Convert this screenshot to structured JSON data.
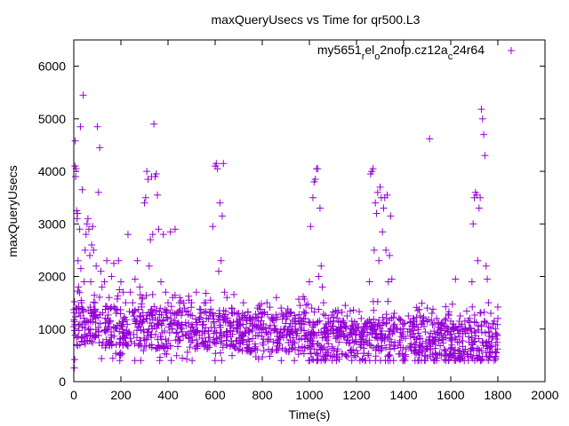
{
  "chart_data": {
    "type": "scatter",
    "title": "maxQueryUsecs vs Time for qr500.L3",
    "xlabel": "Time(s)",
    "ylabel": "maxQueryUsecs",
    "xlim": [
      0,
      2000
    ],
    "ylim": [
      0,
      6500
    ],
    "xticks": [
      0,
      200,
      400,
      600,
      800,
      1000,
      1200,
      1400,
      1600,
      1800,
      2000
    ],
    "yticks": [
      0,
      1000,
      2000,
      3000,
      4000,
      5000,
      6000
    ],
    "grid": false,
    "legend_position": "top-right",
    "marker_color": "#9400d3",
    "series": [
      {
        "name_parts": [
          {
            "t": "my5651",
            "sub": false
          },
          {
            "t": "r",
            "sub": true
          },
          {
            "t": "el",
            "sub": false
          },
          {
            "t": "o",
            "sub": true
          },
          {
            "t": "2nofp.cz12a",
            "sub": false
          },
          {
            "t": "c",
            "sub": true
          },
          {
            "t": "24r64",
            "sub": false
          }
        ],
        "points": [
          [
            2,
            260
          ],
          [
            4,
            420
          ],
          [
            5,
            4100
          ],
          [
            6,
            4580
          ],
          [
            8,
            3900
          ],
          [
            9,
            1400
          ],
          [
            10,
            4050
          ],
          [
            12,
            3250
          ],
          [
            14,
            3100
          ],
          [
            16,
            3200
          ],
          [
            18,
            2300
          ],
          [
            20,
            1800
          ],
          [
            22,
            1300
          ],
          [
            25,
            2900
          ],
          [
            28,
            4850
          ],
          [
            30,
            2150
          ],
          [
            33,
            1500
          ],
          [
            36,
            3650
          ],
          [
            40,
            5450
          ],
          [
            44,
            1900
          ],
          [
            48,
            2500
          ],
          [
            52,
            2800
          ],
          [
            56,
            3000
          ],
          [
            60,
            3100
          ],
          [
            64,
            2900
          ],
          [
            68,
            2400
          ],
          [
            72,
            1900
          ],
          [
            76,
            2600
          ],
          [
            80,
            2950
          ],
          [
            84,
            2500
          ],
          [
            90,
            1500
          ],
          [
            95,
            2200
          ],
          [
            100,
            4850
          ],
          [
            105,
            3600
          ],
          [
            110,
            4450
          ],
          [
            115,
            2100
          ],
          [
            120,
            1800
          ],
          [
            130,
            1900
          ],
          [
            140,
            2300
          ],
          [
            150,
            1600
          ],
          [
            160,
            2000
          ],
          [
            170,
            2250
          ],
          [
            180,
            1300
          ],
          [
            190,
            2300
          ],
          [
            200,
            1900
          ],
          [
            210,
            1700
          ],
          [
            220,
            1500
          ],
          [
            230,
            2800
          ],
          [
            240,
            1700
          ],
          [
            250,
            1500
          ],
          [
            260,
            1950
          ],
          [
            270,
            2300
          ],
          [
            280,
            1800
          ],
          [
            290,
            1600
          ],
          [
            300,
            3400
          ],
          [
            305,
            3500
          ],
          [
            310,
            4000
          ],
          [
            315,
            3850
          ],
          [
            320,
            2200
          ],
          [
            325,
            2700
          ],
          [
            330,
            3900
          ],
          [
            335,
            2800
          ],
          [
            340,
            4900
          ],
          [
            345,
            3900
          ],
          [
            350,
            3950
          ],
          [
            355,
            3550
          ],
          [
            360,
            2900
          ],
          [
            370,
            1900
          ],
          [
            380,
            2800
          ],
          [
            390,
            1700
          ],
          [
            400,
            1500
          ],
          [
            410,
            2850
          ],
          [
            420,
            1600
          ],
          [
            430,
            2900
          ],
          [
            450,
            1600
          ],
          [
            470,
            1400
          ],
          [
            500,
            1500
          ],
          [
            520,
            1700
          ],
          [
            540,
            1300
          ],
          [
            560,
            1500
          ],
          [
            580,
            1550
          ],
          [
            590,
            2950
          ],
          [
            600,
            4100
          ],
          [
            605,
            4150
          ],
          [
            610,
            4050
          ],
          [
            615,
            2100
          ],
          [
            620,
            3400
          ],
          [
            625,
            2300
          ],
          [
            630,
            3150
          ],
          [
            635,
            4150
          ],
          [
            640,
            1700
          ],
          [
            650,
            1600
          ],
          [
            670,
            1400
          ],
          [
            700,
            1300
          ],
          [
            720,
            1500
          ],
          [
            750,
            1200
          ],
          [
            780,
            1400
          ],
          [
            800,
            1300
          ],
          [
            820,
            1500
          ],
          [
            840,
            1200
          ],
          [
            860,
            1600
          ],
          [
            880,
            1400
          ],
          [
            900,
            1300
          ],
          [
            920,
            1300
          ],
          [
            940,
            1200
          ],
          [
            960,
            1450
          ],
          [
            980,
            1300
          ],
          [
            1000,
            1900
          ],
          [
            1005,
            2950
          ],
          [
            1010,
            1400
          ],
          [
            1015,
            3500
          ],
          [
            1020,
            3800
          ],
          [
            1025,
            3850
          ],
          [
            1030,
            4050
          ],
          [
            1035,
            4050
          ],
          [
            1040,
            2000
          ],
          [
            1045,
            3300
          ],
          [
            1050,
            2200
          ],
          [
            1055,
            1800
          ],
          [
            1060,
            1500
          ],
          [
            1080,
            1200
          ],
          [
            1100,
            1050
          ],
          [
            1120,
            1300
          ],
          [
            1140,
            1150
          ],
          [
            1160,
            1250
          ],
          [
            1180,
            1150
          ],
          [
            1200,
            1100
          ],
          [
            1220,
            1200
          ],
          [
            1240,
            1050
          ],
          [
            1255,
            1900
          ],
          [
            1260,
            3950
          ],
          [
            1265,
            4000
          ],
          [
            1270,
            4050
          ],
          [
            1275,
            2500
          ],
          [
            1280,
            3400
          ],
          [
            1285,
            3200
          ],
          [
            1290,
            3600
          ],
          [
            1295,
            2300
          ],
          [
            1300,
            3700
          ],
          [
            1305,
            3500
          ],
          [
            1310,
            2850
          ],
          [
            1315,
            3300
          ],
          [
            1320,
            3500
          ],
          [
            1325,
            2500
          ],
          [
            1330,
            3550
          ],
          [
            1335,
            1900
          ],
          [
            1340,
            2400
          ],
          [
            1345,
            3150
          ],
          [
            1350,
            1950
          ],
          [
            1360,
            1300
          ],
          [
            1380,
            1200
          ],
          [
            1400,
            1100
          ],
          [
            1420,
            1250
          ],
          [
            1440,
            1200
          ],
          [
            1460,
            1350
          ],
          [
            1480,
            1150
          ],
          [
            1500,
            1400
          ],
          [
            1510,
            4620
          ],
          [
            1520,
            1300
          ],
          [
            1540,
            1200
          ],
          [
            1560,
            1100
          ],
          [
            1580,
            1200
          ],
          [
            1600,
            1150
          ],
          [
            1620,
            1950
          ],
          [
            1640,
            1250
          ],
          [
            1660,
            1150
          ],
          [
            1680,
            1200
          ],
          [
            1690,
            1900
          ],
          [
            1695,
            3000
          ],
          [
            1700,
            3500
          ],
          [
            1705,
            3600
          ],
          [
            1710,
            3550
          ],
          [
            1715,
            2300
          ],
          [
            1720,
            3300
          ],
          [
            1725,
            3500
          ],
          [
            1730,
            5180
          ],
          [
            1735,
            5000
          ],
          [
            1740,
            4700
          ],
          [
            1745,
            4300
          ],
          [
            1750,
            2200
          ],
          [
            1755,
            1950
          ],
          [
            1760,
            1500
          ],
          [
            1770,
            1300
          ],
          [
            1780,
            1100
          ],
          [
            1790,
            1000
          ],
          [
            1795,
            900
          ],
          [
            1800,
            1200
          ]
        ]
      }
    ]
  }
}
